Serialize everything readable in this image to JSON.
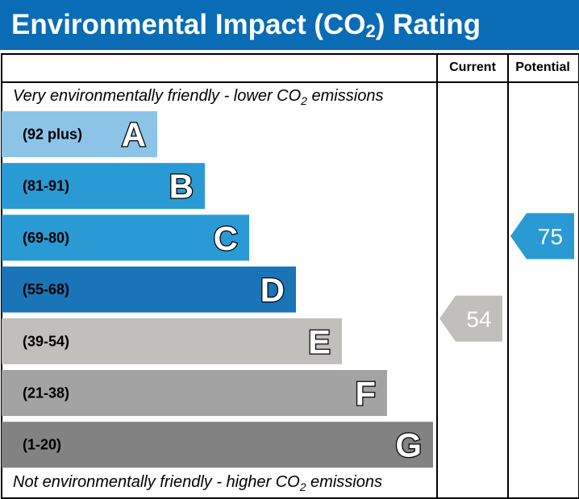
{
  "title": {
    "prefix": "Environmental Impact (CO",
    "sub": "2",
    "suffix": ") Rating"
  },
  "columns": {
    "current": "Current",
    "potential": "Potential"
  },
  "notes": {
    "top": {
      "prefix": "Very environmentally friendly - lower CO",
      "sub": "2",
      "suffix": " emissions"
    },
    "bottom": {
      "prefix": "Not environmentally friendly - higher CO",
      "sub": "2",
      "suffix": " emissions"
    }
  },
  "chart_data": {
    "type": "bar",
    "bands": [
      {
        "letter": "A",
        "range": "(92 plus)",
        "color": "#8cc4e8"
      },
      {
        "letter": "B",
        "range": "(81-91)",
        "color": "#2a9ad4"
      },
      {
        "letter": "C",
        "range": "(69-80)",
        "color": "#2a9ad4"
      },
      {
        "letter": "D",
        "range": "(55-68)",
        "color": "#1a74b8"
      },
      {
        "letter": "E",
        "range": "(39-54)",
        "color": "#c0bfbc"
      },
      {
        "letter": "F",
        "range": "(21-38)",
        "color": "#a3a3a3"
      },
      {
        "letter": "G",
        "range": "(1-20)",
        "color": "#828282"
      }
    ],
    "current": {
      "value": 54,
      "band": "E",
      "color": "#c0bfbc"
    },
    "potential": {
      "value": 75,
      "band": "C",
      "color": "#2a9ad4"
    }
  }
}
